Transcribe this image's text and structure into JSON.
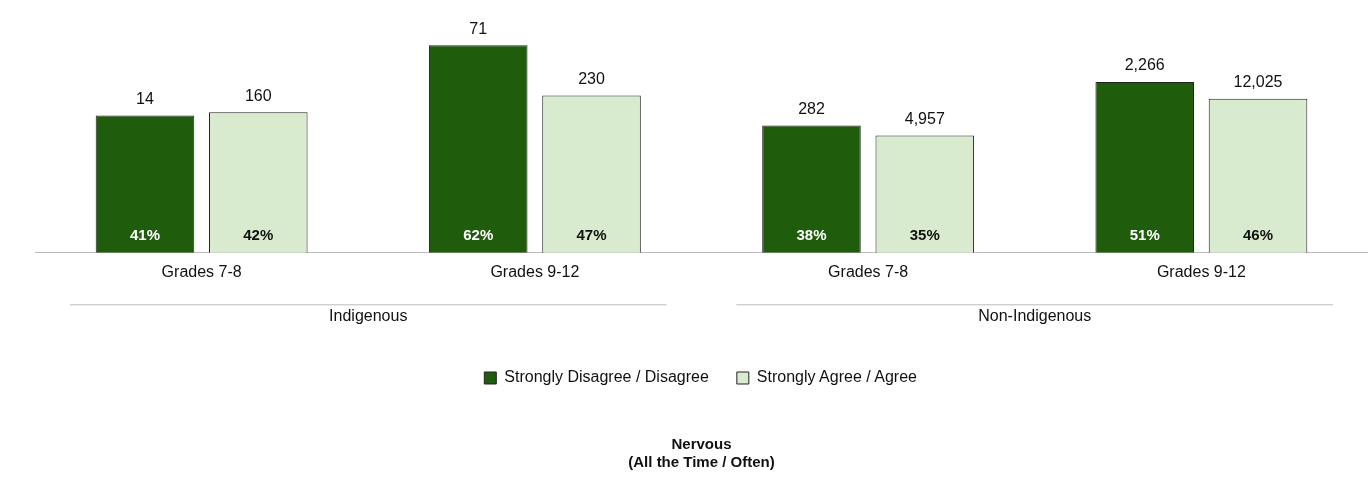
{
  "chart_data": {
    "type": "bar",
    "title": "Nervous\n(All the Time / Often)",
    "categories": [
      "Grades 7-8",
      "Grades 9-12",
      "Grades 7-8",
      "Grades 9-12"
    ],
    "series": [
      {
        "name": "Strongly Disagree / Disagree",
        "color": "#1f5c0c",
        "values": [
          41,
          62,
          38,
          51
        ],
        "value_labels": [
          "41%",
          "62%",
          "38%",
          "51%"
        ]
      },
      {
        "name": "Strongly Agree / Agree",
        "color": "#d8ebcf",
        "values": [
          42,
          47,
          35,
          46
        ],
        "value_labels": [
          "42%",
          "47%",
          "35%",
          "46%"
        ]
      }
    ],
    "annotations": [
      "14",
      "160",
      "71",
      "230",
      "282",
      "4,957",
      "2,266",
      "12,025",
      "Indigenous",
      "Non-Indigenous"
    ],
    "legend": "bottom",
    "grid": false
  }
}
